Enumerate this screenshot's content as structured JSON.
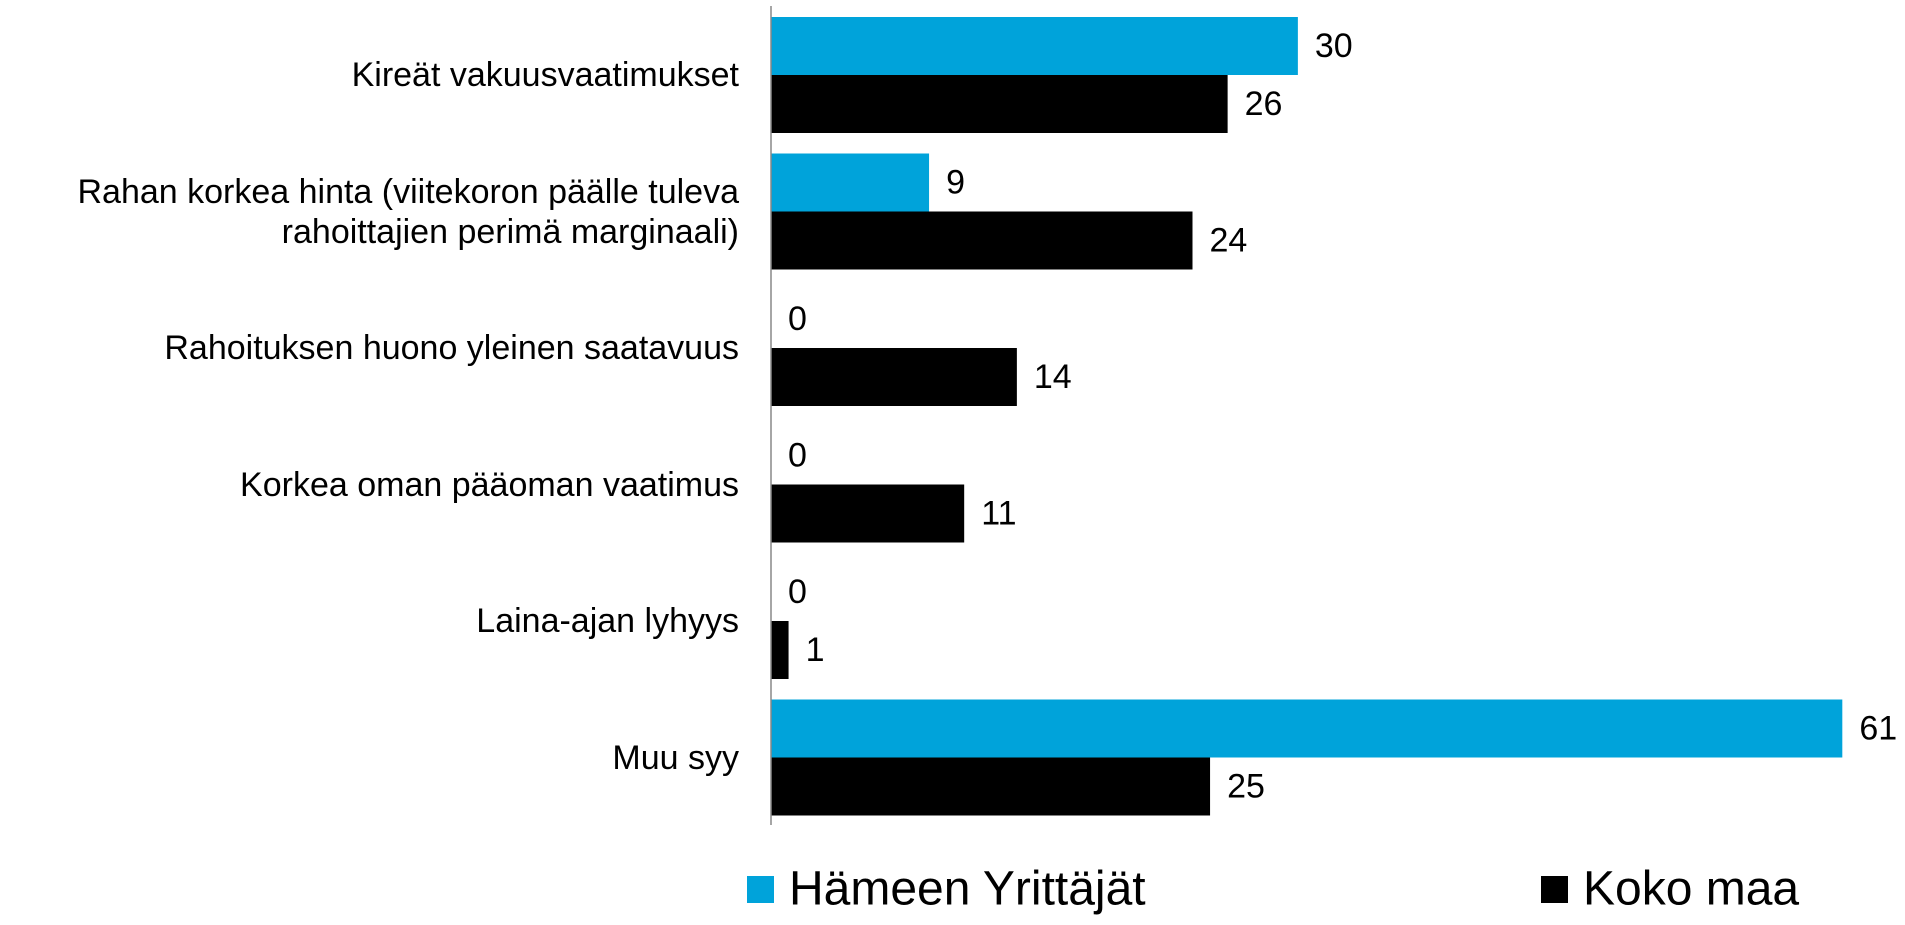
{
  "chart_data": {
    "type": "bar",
    "orientation": "horizontal",
    "categories": [
      "Kireät vakuusvaatimukset",
      "Rahan korkea hinta (viitekoron päälle tuleva rahoittajien perimä marginaali)",
      "Rahoituksen huono yleinen saatavuus",
      "Korkea oman pääoman vaatimus",
      "Laina-ajan lyhyys",
      "Muu syy"
    ],
    "series": [
      {
        "name": "Hämeen Yrittäjät",
        "color": "#00a3da",
        "values": [
          30,
          9,
          0,
          0,
          0,
          61
        ]
      },
      {
        "name": "Koko maa",
        "color": "#000000",
        "values": [
          26,
          24,
          14,
          11,
          1,
          25
        ]
      }
    ],
    "xlim": [
      0,
      64
    ]
  }
}
